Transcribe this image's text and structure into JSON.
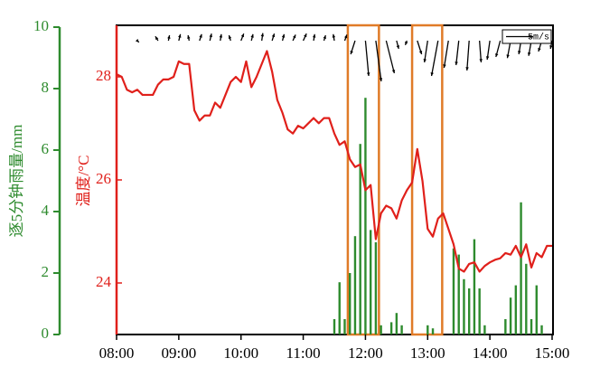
{
  "chart_data": {
    "type": "combo",
    "ylabel": "逐5分钟雨量/mm",
    "y2label": "温度/°C",
    "x": [
      480,
      485,
      490,
      495,
      500,
      505,
      510,
      515,
      520,
      525,
      530,
      535,
      540,
      545,
      550,
      555,
      560,
      565,
      570,
      575,
      580,
      585,
      590,
      595,
      600,
      605,
      610,
      615,
      620,
      625,
      630,
      635,
      640,
      645,
      650,
      655,
      660,
      665,
      670,
      675,
      680,
      685,
      690,
      695,
      700,
      705,
      710,
      715,
      720,
      725,
      730,
      735,
      740,
      745,
      750,
      755,
      760,
      765,
      770,
      775,
      780,
      785,
      790,
      795,
      800,
      805,
      810,
      815,
      820,
      825,
      830,
      835,
      840,
      845,
      850,
      855,
      860,
      865,
      870,
      875,
      880,
      885,
      890,
      895,
      900
    ],
    "xlim": [
      480,
      900
    ],
    "xticks": [
      {
        "value": 480,
        "label": "08:00"
      },
      {
        "value": 540,
        "label": "09:00"
      },
      {
        "value": 600,
        "label": "10:00"
      },
      {
        "value": 660,
        "label": "11:00"
      },
      {
        "value": 720,
        "label": "12:00"
      },
      {
        "value": 780,
        "label": "13:00"
      },
      {
        "value": 840,
        "label": "14:00"
      },
      {
        "value": 900,
        "label": "15:00"
      }
    ],
    "ylim": [
      0,
      10
    ],
    "yticks": [
      0,
      2,
      4,
      6,
      8,
      10
    ],
    "y2lim": [
      23,
      29
    ],
    "y2ticks": [
      24,
      26,
      28
    ],
    "series": [
      {
        "name": "rain",
        "type": "bar",
        "color": "#2e8b2e",
        "values": [
          0,
          0,
          0,
          0,
          0,
          0,
          0,
          0,
          0,
          0,
          0,
          0,
          0,
          0,
          0,
          0,
          0,
          0,
          0,
          0,
          0,
          0,
          0,
          0,
          0,
          0,
          0,
          0,
          0,
          0,
          0,
          0,
          0,
          0,
          0,
          0,
          0,
          0,
          0,
          0,
          0,
          0,
          0.5,
          1.7,
          0.5,
          2.0,
          3.2,
          6.2,
          7.7,
          3.4,
          3.0,
          0.3,
          0,
          0.4,
          0.7,
          0.3,
          0,
          0,
          0,
          0,
          0.3,
          0.2,
          0,
          0,
          0,
          2.8,
          2.6,
          1.8,
          1.5,
          3.1,
          1.5,
          0.3,
          0,
          0,
          0,
          0.5,
          1.2,
          1.6,
          4.3,
          2.3,
          0.5,
          1.6,
          0.3,
          0,
          0
        ]
      },
      {
        "name": "temperature",
        "type": "line",
        "axis": "y2",
        "color": "#e0201b",
        "values": [
          28.05,
          28.0,
          27.75,
          27.7,
          27.75,
          27.65,
          27.65,
          27.65,
          27.85,
          27.95,
          27.95,
          28.0,
          28.3,
          28.25,
          28.25,
          27.35,
          27.15,
          27.25,
          27.25,
          27.5,
          27.4,
          27.65,
          27.9,
          28.0,
          27.9,
          28.3,
          27.8,
          28.0,
          28.25,
          28.5,
          28.1,
          27.55,
          27.3,
          26.98,
          26.9,
          27.05,
          27.0,
          27.1,
          27.2,
          27.1,
          27.2,
          27.2,
          26.9,
          26.68,
          26.75,
          26.4,
          26.25,
          26.3,
          25.8,
          25.9,
          24.85,
          25.35,
          25.5,
          25.45,
          25.25,
          25.6,
          25.8,
          25.95,
          26.6,
          25.98,
          25.05,
          24.9,
          25.25,
          25.35,
          25.05,
          24.75,
          24.28,
          24.22,
          24.37,
          24.4,
          24.22,
          24.33,
          24.4,
          24.45,
          24.48,
          24.58,
          24.55,
          24.72,
          24.5,
          24.75,
          24.3,
          24.58,
          24.5,
          24.72,
          24.72
        ]
      }
    ],
    "wind": {
      "color": "#000000",
      "x": [
        500,
        520,
        530,
        540,
        550,
        560,
        570,
        580,
        590,
        600,
        610,
        620,
        630,
        640,
        650,
        660,
        670,
        680,
        690,
        700,
        710,
        720,
        730,
        740,
        750,
        760,
        770,
        780,
        790,
        800,
        810,
        820,
        830,
        840,
        850,
        860,
        870,
        880,
        890,
        900
      ],
      "u": [
        0.3,
        -0.5,
        0.2,
        0.3,
        -0.2,
        0.4,
        0.3,
        0.2,
        -0.3,
        0.5,
        0.3,
        0.2,
        0.4,
        0.3,
        0.5,
        0.6,
        0.2,
        0.3,
        -0.2,
        0.4,
        -0.8,
        0.6,
        1.0,
        1.5,
        0.4,
        -0.3,
        0.8,
        -0.6,
        -1.2,
        -0.8,
        -0.5,
        -0.4,
        0.3,
        -0.5,
        -0.8,
        -0.6,
        -0.4,
        -0.5,
        -0.6,
        -0.3
      ],
      "v": [
        -0.3,
        0.8,
        1.0,
        1.2,
        1.0,
        1.2,
        1.3,
        1.2,
        1.0,
        1.3,
        1.2,
        1.4,
        1.3,
        1.2,
        1.1,
        1.3,
        1.2,
        1.0,
        1.2,
        1.1,
        -2.5,
        -6.5,
        -7.5,
        -6.0,
        -1.5,
        -0.8,
        -2.5,
        -4.0,
        -6.5,
        -5.0,
        -4.5,
        -5.5,
        -4.0,
        -3.5,
        -3.0,
        -3.2,
        -2.5,
        -2.8,
        -2.0,
        -1.5
      ]
    },
    "wind_key": {
      "value": 5,
      "label": "5m/s"
    },
    "highlights": {
      "color": "#e07b28",
      "ranges": [
        [
          703,
          733
        ],
        [
          765,
          794
        ]
      ]
    }
  }
}
